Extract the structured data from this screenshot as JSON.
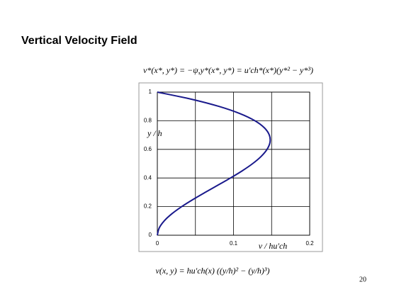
{
  "chart_data": {
    "type": "line",
    "title": "Vertical Velocity Field",
    "equation_top": "v*(x*, y*) = −ψ,y*(x*, y*) = u′ch*(x*)(y*² − y*³)",
    "equation_bottom": "v(x, y) = hu′ch(x) ((y/h)² − (y/h)³)",
    "xlabel": "v / hu′ch",
    "ylabel": "y / h",
    "page_number": "20",
    "xlim": [
      0,
      0.2
    ],
    "xticks": [
      0,
      0.1,
      0.2
    ],
    "x_minor_gridlines": [
      0.05,
      0.15
    ],
    "ylim": [
      0,
      1
    ],
    "yticks": [
      0,
      0.2,
      0.4,
      0.6,
      0.8,
      1
    ],
    "grid": true,
    "series": [
      {
        "color": "#1a1a8c",
        "x": [
          0,
          0.0024,
          0.009,
          0.0191,
          0.032,
          0.0469,
          0.063,
          0.0796,
          0.096,
          0.1114,
          0.125,
          0.1361,
          0.144,
          0.1479,
          0.147,
          0.1406,
          0.128,
          0.1084,
          0.081,
          0.0451,
          0
        ],
        "values": [
          0,
          0.05,
          0.1,
          0.15,
          0.2,
          0.25,
          0.3,
          0.35,
          0.4,
          0.45,
          0.5,
          0.55,
          0.6,
          0.65,
          0.7,
          0.75,
          0.8,
          0.85,
          0.9,
          0.95,
          1
        ]
      }
    ]
  }
}
